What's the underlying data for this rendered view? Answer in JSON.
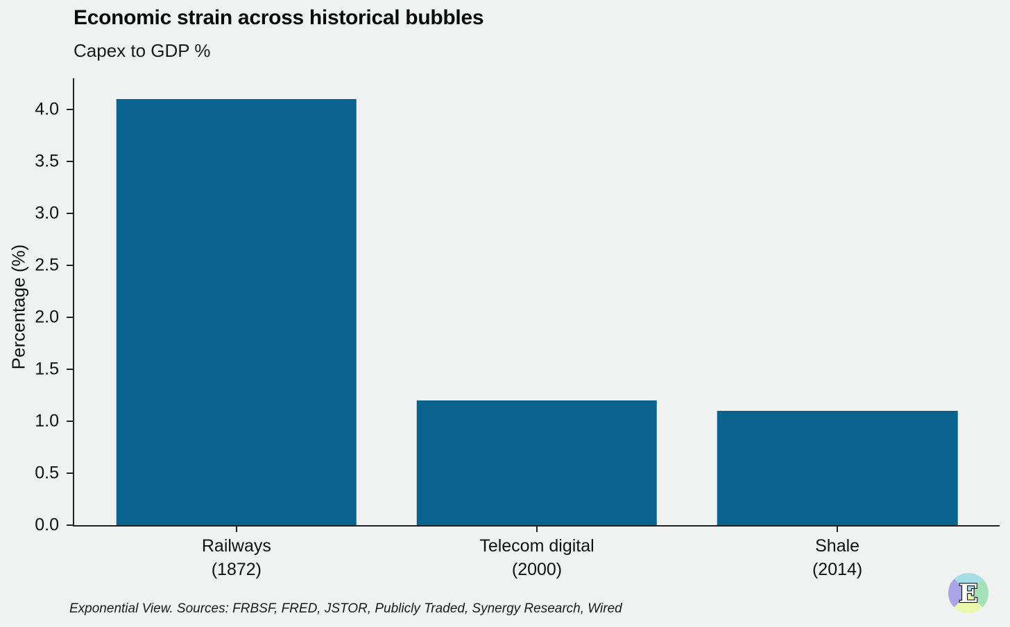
{
  "title": "Economic strain across historical bubbles",
  "subtitle": "Capex to GDP %",
  "footer": "Exponential View. Sources: FRBSF, FRED, JSTOR, Publicly Traded, Synergy Research, Wired",
  "logo": {
    "letter": "E",
    "quadrant_colors": {
      "top": "#a6dee6",
      "right": "#a3e2b7",
      "bottom": "#ecf8ad",
      "left": "#a9a4e6"
    }
  },
  "chart_data": {
    "type": "bar",
    "title": "Economic strain across historical bubbles",
    "subtitle": "Capex to GDP %",
    "categories": [
      {
        "label": "Railways",
        "sub": "(1872)"
      },
      {
        "label": "Telecom digital",
        "sub": "(2000)"
      },
      {
        "label": "Shale",
        "sub": "(2014)"
      }
    ],
    "values": [
      4.1,
      1.2,
      1.1
    ],
    "xlabel": "",
    "ylabel": "Percentage (%)",
    "ylim": [
      0,
      4.3
    ],
    "yticks": [
      0,
      0.5,
      1,
      1.5,
      2,
      2.5,
      3,
      3.5,
      4
    ],
    "ytick_decimals": 1,
    "bar_color": "#0a638e",
    "background_color": "#f0f1f1",
    "grid": false,
    "legend": null
  }
}
